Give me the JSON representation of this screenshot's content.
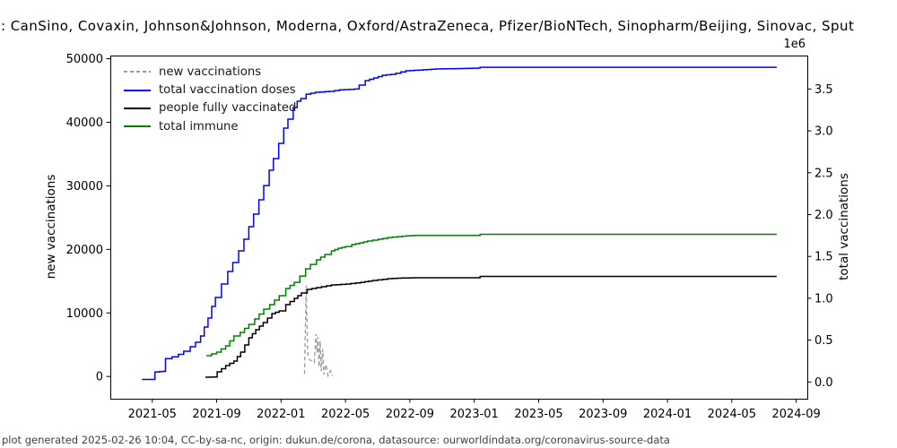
{
  "footer": {
    "text": "plot generated 2025-02-26 10:04, CC-by-sa-nc, origin: dukun.de/corona, datasource: ourworldindata.org/coronavirus-source-data"
  },
  "chart_data": {
    "type": "line",
    "title": ": CanSino, Covaxin, Johnson&Johnson, Moderna, Oxford/AstraZeneca, Pfizer/BioNTech, Sinopharm/Beijing, Sinovac, Sput",
    "title_truncated": true,
    "legend_position": "upper left",
    "grid": false,
    "x_axis": {
      "ticks": [
        "2021-05",
        "2021-09",
        "2022-01",
        "2022-05",
        "2022-09",
        "2023-01",
        "2023-05",
        "2023-09",
        "2024-01",
        "2024-05",
        "2024-09"
      ],
      "range": [
        "2021-02-13",
        "2024-09-22"
      ]
    },
    "left_axis": {
      "label": "new vaccinations",
      "ticks": [
        0,
        10000,
        20000,
        30000,
        40000,
        50000
      ],
      "range": [
        -3500,
        50500
      ]
    },
    "right_axis": {
      "label": "total vaccinations",
      "offset_text": "1e6",
      "ticks": [
        0,
        500000,
        1000000,
        1500000,
        2000000,
        2500000,
        3000000,
        3500000
      ],
      "range": [
        -200000,
        3900000
      ]
    },
    "series": [
      {
        "name": "new vaccinations",
        "color": "#9a9a9a",
        "dash": "dashed",
        "axis": "left",
        "step": false,
        "points": [
          [
            "2022-02-15",
            400
          ],
          [
            "2022-02-18",
            14300
          ],
          [
            "2022-02-21",
            3500
          ],
          [
            "2022-02-25",
            2600
          ],
          [
            "2022-03-03",
            2200
          ],
          [
            "2022-03-06",
            6700
          ],
          [
            "2022-03-08",
            3800
          ],
          [
            "2022-03-10",
            6200
          ],
          [
            "2022-03-12",
            1500
          ],
          [
            "2022-03-14",
            5600
          ],
          [
            "2022-03-16",
            800
          ],
          [
            "2022-03-19",
            4300
          ],
          [
            "2022-03-21",
            300
          ],
          [
            "2022-03-25",
            1900
          ],
          [
            "2022-03-29",
            100
          ],
          [
            "2022-04-03",
            900
          ],
          [
            "2022-04-07",
            100
          ]
        ]
      },
      {
        "name": "total vaccination doses",
        "color": "#0000ff",
        "dash": "solid",
        "axis": "right",
        "step": true,
        "points": [
          [
            "2021-04-12",
            30000
          ],
          [
            "2021-05-04",
            30000
          ],
          [
            "2021-05-06",
            120000
          ],
          [
            "2021-05-24",
            130000
          ],
          [
            "2021-05-26",
            280000
          ],
          [
            "2021-06-08",
            300000
          ],
          [
            "2021-06-20",
            330000
          ],
          [
            "2021-06-30",
            367000
          ],
          [
            "2021-07-12",
            421000
          ],
          [
            "2021-07-22",
            474000
          ],
          [
            "2021-08-01",
            549000
          ],
          [
            "2021-08-08",
            656000
          ],
          [
            "2021-08-15",
            763000
          ],
          [
            "2021-08-22",
            903000
          ],
          [
            "2021-08-29",
            1010000
          ],
          [
            "2021-09-10",
            1170000
          ],
          [
            "2021-09-22",
            1320000
          ],
          [
            "2021-10-01",
            1427000
          ],
          [
            "2021-10-12",
            1566000
          ],
          [
            "2021-10-22",
            1705000
          ],
          [
            "2021-11-01",
            1855000
          ],
          [
            "2021-11-10",
            2005000
          ],
          [
            "2021-11-20",
            2176000
          ],
          [
            "2021-11-29",
            2347000
          ],
          [
            "2021-12-09",
            2530000
          ],
          [
            "2021-12-17",
            2669000
          ],
          [
            "2021-12-27",
            2851000
          ],
          [
            "2022-01-06",
            3033000
          ],
          [
            "2022-01-14",
            3140000
          ],
          [
            "2022-01-24",
            3279000
          ],
          [
            "2022-02-01",
            3354000
          ],
          [
            "2022-02-08",
            3386000
          ],
          [
            "2022-02-18",
            3439000
          ],
          [
            "2022-03-05",
            3461000
          ],
          [
            "2022-04-01",
            3472000
          ],
          [
            "2022-04-20",
            3490000
          ],
          [
            "2022-05-18",
            3500000
          ],
          [
            "2022-05-27",
            3547000
          ],
          [
            "2022-06-08",
            3600000
          ],
          [
            "2022-06-24",
            3632000
          ],
          [
            "2022-07-10",
            3664000
          ],
          [
            "2022-07-26",
            3675000
          ],
          [
            "2022-08-24",
            3718000
          ],
          [
            "2022-10-20",
            3739000
          ],
          [
            "2023-01-08",
            3750000
          ],
          [
            "2023-01-12",
            3760000
          ],
          [
            "2024-07-25",
            3760000
          ]
        ]
      },
      {
        "name": "people fully vaccinated",
        "color": "#000000",
        "dash": "solid",
        "axis": "right",
        "step": true,
        "points": [
          [
            "2021-08-10",
            57000
          ],
          [
            "2021-08-26",
            60000
          ],
          [
            "2021-09-02",
            121000
          ],
          [
            "2021-09-18",
            196000
          ],
          [
            "2021-10-03",
            250000
          ],
          [
            "2021-10-16",
            357000
          ],
          [
            "2021-11-01",
            528000
          ],
          [
            "2021-11-14",
            624000
          ],
          [
            "2021-11-28",
            710000
          ],
          [
            "2021-12-14",
            817000
          ],
          [
            "2021-12-28",
            849000
          ],
          [
            "2022-01-10",
            924000
          ],
          [
            "2022-01-26",
            999000
          ],
          [
            "2022-02-09",
            1063000
          ],
          [
            "2022-02-20",
            1106000
          ],
          [
            "2022-03-07",
            1127000
          ],
          [
            "2022-04-05",
            1159000
          ],
          [
            "2022-05-02",
            1170000
          ],
          [
            "2022-05-30",
            1191000
          ],
          [
            "2022-06-22",
            1213000
          ],
          [
            "2022-07-20",
            1234000
          ],
          [
            "2022-08-16",
            1242000
          ],
          [
            "2022-09-10",
            1245000
          ],
          [
            "2023-01-08",
            1245000
          ],
          [
            "2023-01-12",
            1261000
          ],
          [
            "2024-07-25",
            1261000
          ]
        ]
      },
      {
        "name": "total immune",
        "color": "#008000",
        "dash": "solid",
        "axis": "right",
        "step": true,
        "points": [
          [
            "2021-08-12",
            314000
          ],
          [
            "2021-09-01",
            357000
          ],
          [
            "2021-09-18",
            432000
          ],
          [
            "2021-10-03",
            549000
          ],
          [
            "2021-10-15",
            592000
          ],
          [
            "2021-11-01",
            689000
          ],
          [
            "2021-11-12",
            753000
          ],
          [
            "2021-11-29",
            871000
          ],
          [
            "2021-12-10",
            924000
          ],
          [
            "2021-12-28",
            1031000
          ],
          [
            "2022-01-10",
            1117000
          ],
          [
            "2022-01-26",
            1191000
          ],
          [
            "2022-02-06",
            1266000
          ],
          [
            "2022-02-17",
            1352000
          ],
          [
            "2022-02-26",
            1405000
          ],
          [
            "2022-03-07",
            1459000
          ],
          [
            "2022-03-15",
            1491000
          ],
          [
            "2022-03-23",
            1523000
          ],
          [
            "2022-04-05",
            1566000
          ],
          [
            "2022-04-18",
            1598000
          ],
          [
            "2022-05-01",
            1619000
          ],
          [
            "2022-05-13",
            1641000
          ],
          [
            "2022-05-28",
            1662000
          ],
          [
            "2022-06-12",
            1684000
          ],
          [
            "2022-07-02",
            1705000
          ],
          [
            "2022-07-20",
            1726000
          ],
          [
            "2022-08-17",
            1742000
          ],
          [
            "2022-09-10",
            1752000
          ],
          [
            "2023-01-08",
            1752000
          ],
          [
            "2023-01-12",
            1764000
          ],
          [
            "2024-07-25",
            1764000
          ]
        ]
      }
    ]
  }
}
